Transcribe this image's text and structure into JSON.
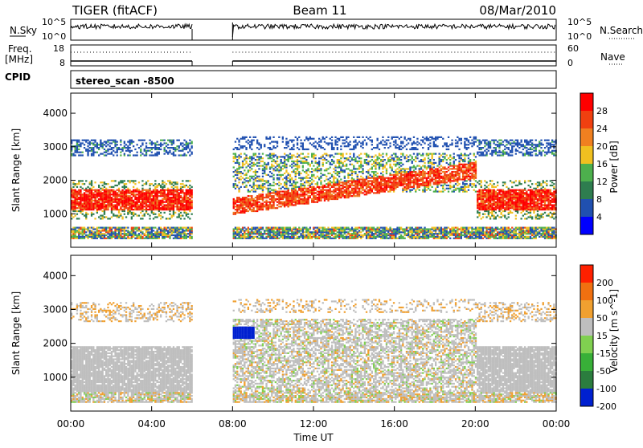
{
  "header": {
    "radar": "TIGER (fitACF)",
    "beam": "Beam 11",
    "date": "08/Mar/2010"
  },
  "strip": {
    "nsky_label": "N.Sky",
    "nsky_ticks": [
      "10^5",
      "10^0"
    ],
    "nsearch_label": "N.Search",
    "freq_label_1": "Freq.",
    "freq_label_2": "[MHz]",
    "freq_ticks": [
      "18",
      "8"
    ],
    "nave_label": "Nave",
    "nave_ticks": [
      "60",
      "0"
    ],
    "cpid_label": "CPID",
    "cpid_value": "stereo_scan -8500"
  },
  "chart_data": [
    {
      "type": "heatmap",
      "name": "power",
      "ylabel": "Slant Range [km]",
      "yticks": [
        1000,
        2000,
        3000,
        4000
      ],
      "colorbar_label": "Power [dB]",
      "colorbar_ticks": [
        "28",
        "24",
        "20",
        "16",
        "12",
        "8",
        "4"
      ],
      "colors": [
        "#0000ff",
        "#2050b0",
        "#2e7d4f",
        "#4db04d",
        "#f0c020",
        "#f08020",
        "#f04010",
        "#ff0000"
      ],
      "no_data_intervals_ut": [
        [
          "06:00",
          "08:00"
        ]
      ]
    },
    {
      "type": "heatmap",
      "name": "velocity",
      "ylabel": "Slant Range [km]",
      "yticks": [
        1000,
        2000,
        3000,
        4000
      ],
      "colorbar_label": "Velocity [m s^-1]",
      "colorbar_ticks": [
        "200",
        "100",
        "50",
        "15",
        "-15",
        "-50",
        "-100",
        "-200"
      ],
      "colors": [
        "#0020d0",
        "#2b7d3e",
        "#38b038",
        "#80d050",
        "#bebebe",
        "#f0a030",
        "#f07010",
        "#ff2000"
      ],
      "no_data_intervals_ut": [
        [
          "06:00",
          "08:00"
        ]
      ]
    }
  ],
  "xaxis": {
    "label": "Time UT",
    "ticks": [
      "00:00",
      "04:00",
      "08:00",
      "12:00",
      "16:00",
      "20:00",
      "00:00"
    ]
  }
}
